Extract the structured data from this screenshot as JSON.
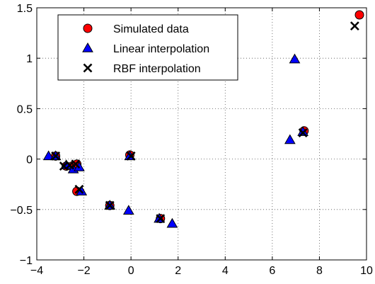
{
  "chart_data": {
    "type": "scatter",
    "title": "",
    "xlabel": "",
    "ylabel": "",
    "xlim": [
      -4,
      10
    ],
    "ylim": [
      -1,
      1.5
    ],
    "xticks": [
      -4,
      -2,
      0,
      2,
      4,
      6,
      8,
      10
    ],
    "yticks": [
      -1,
      -0.5,
      0,
      0.5,
      1,
      1.5
    ],
    "xtick_labels": [
      "−4",
      "−2",
      "0",
      "2",
      "4",
      "6",
      "8",
      "10"
    ],
    "ytick_labels": [
      "−1",
      "−0.5",
      "0",
      "0.5",
      "1",
      "1.5"
    ],
    "grid": true,
    "grid_style": "dotted",
    "legend_position": "top-left",
    "series": [
      {
        "name": "Simulated data",
        "marker": "circle",
        "color": "#ff0000",
        "x": [
          -3.2,
          -2.75,
          -2.5,
          -2.3,
          -2.3,
          -0.9,
          -0.05,
          1.25,
          7.35,
          9.7
        ],
        "y": [
          0.03,
          -0.07,
          -0.07,
          -0.05,
          -0.32,
          -0.46,
          0.04,
          -0.59,
          0.28,
          1.43
        ]
      },
      {
        "name": "Linear interpolation",
        "marker": "triangle",
        "color": "#0000ff",
        "x": [
          -3.5,
          -3.2,
          -2.75,
          -2.45,
          -2.2,
          -2.1,
          -0.9,
          -0.1,
          -0.05,
          1.2,
          1.75,
          6.75,
          6.95,
          7.3
        ],
        "y": [
          0.03,
          0.03,
          -0.06,
          -0.1,
          -0.08,
          -0.32,
          -0.46,
          -0.51,
          0.03,
          -0.59,
          -0.64,
          0.19,
          0.99,
          0.27
        ]
      },
      {
        "name": "RBF interpolation",
        "marker": "x",
        "color": "#000000",
        "x": [
          -3.2,
          -2.85,
          -2.6,
          -2.35,
          -2.2,
          -0.9,
          0.0,
          1.25,
          7.3,
          9.5
        ],
        "y": [
          0.03,
          -0.07,
          -0.06,
          -0.05,
          -0.3,
          -0.46,
          0.03,
          -0.59,
          0.26,
          1.32
        ]
      }
    ]
  }
}
